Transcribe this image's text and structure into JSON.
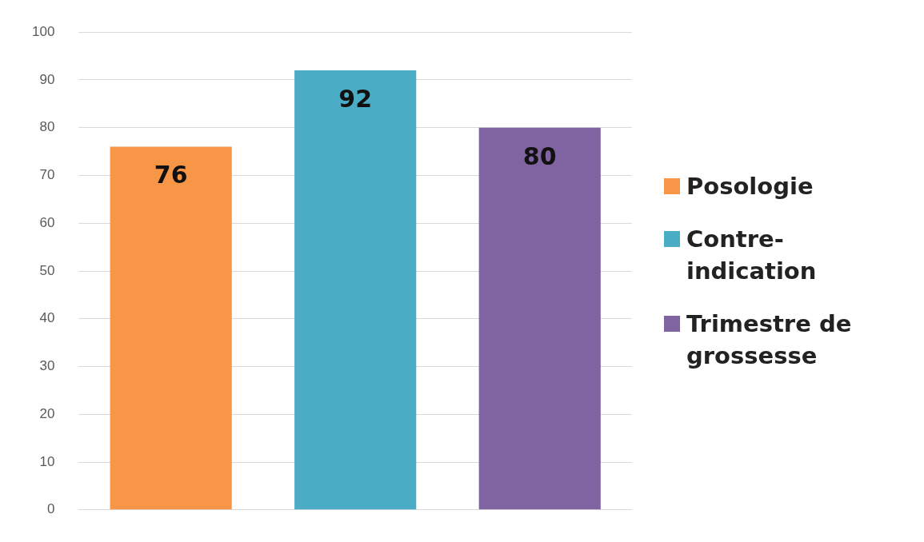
{
  "chart_data": {
    "type": "bar",
    "categories": [
      null
    ],
    "series": [
      {
        "name": "Posologie",
        "color": "#f79646",
        "values": [
          76
        ]
      },
      {
        "name": "Contre-indication",
        "color": "#4bacc6",
        "values": [
          92
        ]
      },
      {
        "name": "Trimestre de grossesse",
        "color": "#8064a2",
        "values": [
          80
        ]
      }
    ],
    "ylim": [
      0,
      100
    ],
    "yticks": [
      0,
      10,
      20,
      30,
      40,
      50,
      60,
      70,
      80,
      90,
      100
    ],
    "grid": "y",
    "legend": "right",
    "data_labels": true
  }
}
